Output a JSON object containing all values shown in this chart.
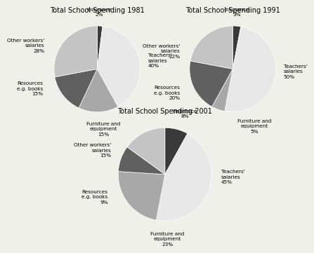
{
  "charts": [
    {
      "title": "Total School Spending 1981",
      "slices": [
        {
          "label": "Insurance\n2%",
          "pct": 2,
          "color": "#3a3a3a"
        },
        {
          "label": "Teachers'\nsalaries\n40%",
          "pct": 40,
          "color": "#e8e8e8"
        },
        {
          "label": "Furniture and\nequipment\n15%",
          "pct": 15,
          "color": "#a8a8a8"
        },
        {
          "label": "Resources\ne.g. books\n15%",
          "pct": 15,
          "color": "#606060"
        },
        {
          "label": "Other workers'\nsalaries\n28%",
          "pct": 28,
          "color": "#c4c4c4"
        }
      ]
    },
    {
      "title": "Total School Spending 1991",
      "slices": [
        {
          "label": "Insurance\n3%",
          "pct": 3,
          "color": "#3a3a3a"
        },
        {
          "label": "Teachers'\nsalaries\n50%",
          "pct": 50,
          "color": "#e8e8e8"
        },
        {
          "label": "Furniture and\nequipment\n5%",
          "pct": 5,
          "color": "#a8a8a8"
        },
        {
          "label": "Resources\ne.g. books\n20%",
          "pct": 20,
          "color": "#606060"
        },
        {
          "label": "Other workers'\nsalaries\n22%",
          "pct": 22,
          "color": "#c4c4c4"
        }
      ]
    },
    {
      "title": "Total School Spending 2001",
      "slices": [
        {
          "label": "Insurance\n8%",
          "pct": 8,
          "color": "#3a3a3a"
        },
        {
          "label": "Teachers'\nsalaries\n45%",
          "pct": 45,
          "color": "#e8e8e8"
        },
        {
          "label": "Furniture and\nequipment\n23%",
          "pct": 23,
          "color": "#a8a8a8"
        },
        {
          "label": "Resources\ne.g. books\n9%",
          "pct": 9,
          "color": "#606060"
        },
        {
          "label": "Other workers'\nsalaries\n15%",
          "pct": 15,
          "color": "#c4c4c4"
        }
      ]
    }
  ],
  "bg_color": "#f0f0e8",
  "title_fontsize": 7,
  "label_fontsize": 5.2,
  "startangle": 90
}
